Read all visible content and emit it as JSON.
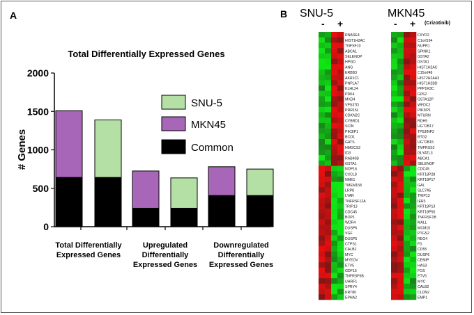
{
  "panels": {
    "a": "A",
    "b": "B"
  },
  "chart_data": {
    "type": "bar",
    "title": "Total Differentially Expressed Genes",
    "ylabel": "# Genes",
    "xlabel": "",
    "ylim": [
      0,
      2000
    ],
    "yticks": [
      0,
      500,
      1000,
      1500,
      2000
    ],
    "categories": [
      "Total Differentially Expressed Genes",
      "Upregulated Differentially Expressed Genes",
      "Downregulated Differentially Expressed Genes"
    ],
    "category_lines": [
      [
        "Total Differentially",
        "Expressed Genes"
      ],
      [
        "Upregulated",
        "Differentially",
        "Expressed Genes"
      ],
      [
        "Downregulated",
        "Differentially",
        "Expressed Genes"
      ]
    ],
    "legend_position": "right",
    "legend": [
      {
        "name": "SNU-5",
        "color": "#b5e0a5"
      },
      {
        "name": "MKN45",
        "color": "#a866b8"
      },
      {
        "name": "Common",
        "color": "#000000"
      }
    ],
    "bars": [
      {
        "category": 0,
        "cell_line": "MKN45",
        "common": 640,
        "specific": 870,
        "total": 1510
      },
      {
        "category": 0,
        "cell_line": "SNU-5",
        "common": 640,
        "specific": 750,
        "total": 1390
      },
      {
        "category": 1,
        "cell_line": "MKN45",
        "common": 240,
        "specific": 485,
        "total": 725
      },
      {
        "category": 1,
        "cell_line": "SNU-5",
        "common": 240,
        "specific": 395,
        "total": 635
      },
      {
        "category": 2,
        "cell_line": "MKN45",
        "common": 405,
        "specific": 375,
        "total": 780
      },
      {
        "category": 2,
        "cell_line": "SNU-5",
        "common": 405,
        "specific": 345,
        "total": 750
      }
    ]
  },
  "heatmaps": [
    {
      "title": "SNU-5",
      "conditions": [
        "-",
        "+"
      ],
      "genes": [
        "RNASE4",
        "HIST1H2AC",
        "TNFSF10",
        "ABCA1",
        "SELENOP",
        "HPGD",
        "ANG",
        "ERBB3",
        "AKR1C1",
        "PNPLA7",
        "KLHL24",
        "PDK4",
        "MXD4",
        "VPS37D",
        "PRR15L",
        "CDKN2C",
        "CYBRD1",
        "SCIN",
        "PIK3IP1",
        "BCO1",
        "GATS",
        "HMGCS2",
        "ID3",
        "RAB40B",
        "GSTA1",
        "NOP16",
        "CXCL8",
        "NME1",
        "TMEM158",
        "LRP8",
        "LYAR",
        "TNFRSF12A",
        "TRIP13",
        "CDC45",
        "BOP1",
        "WDR4",
        "DUSP6",
        "VGF",
        "DUSP5",
        "CTPS1",
        "CALB2",
        "MYC",
        "MYEOV",
        "ETV5",
        "GDF15",
        "TNFRSF6B",
        "UHRF1",
        "SPRY4",
        "KRT80",
        "EPHA2"
      ]
    },
    {
      "title": "MKN45",
      "conditions": [
        "-",
        "+"
      ],
      "drug": "(Crizotinib)",
      "genes": [
        "FXYD2",
        "C1orf194",
        "NUPR1",
        "SPINK1",
        "GSTA2",
        "GSTA1",
        "HIST1H2AC",
        "C15orf48",
        "HIST2H2AA3",
        "HIST1H2BD",
        "PPP1R3C",
        "G0S2",
        "GSTA12P",
        "WFDC2",
        "PIK3IP1",
        "MTURN",
        "RDH5",
        "UGT2B17",
        "TP53INP2",
        "BTG2",
        "UGT2B15",
        "TMPRSS2",
        "GLYATL3",
        "ABCA1",
        "SELENOP",
        "CDC45",
        "KRT18P28",
        "KRT18P17",
        "GAL",
        "SLC7A5",
        "TRIP13",
        "IER3",
        "KRT18P13",
        "KRT18P55",
        "TNFRSF1B",
        "MALL",
        "MCM10",
        "PTGS2",
        "REG4",
        "F3",
        "CD55",
        "DUSP6",
        "CEMIP",
        "HAS3",
        "FOS",
        "ETV5",
        "MYC",
        "CALB2",
        "CLDN2",
        "EMP1"
      ]
    }
  ]
}
